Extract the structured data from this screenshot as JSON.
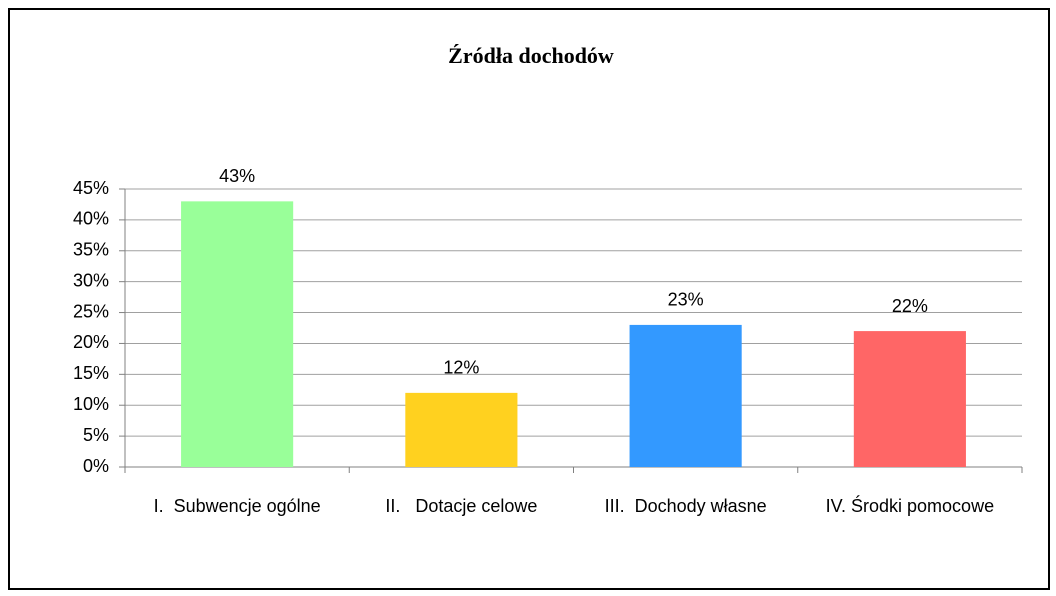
{
  "chart_data": {
    "type": "bar",
    "title": "Źródła dochodów",
    "categories": [
      "I.  Subwencje ogólne",
      "II.   Dotacje celowe",
      "III.  Dochody własne",
      "IV. Środki pomocowe"
    ],
    "values": [
      43,
      12,
      23,
      22
    ],
    "value_labels": [
      "43%",
      "12%",
      "23%",
      "22%"
    ],
    "colors": [
      "#99ff99",
      "#ffd11f",
      "#3399ff",
      "#ff6666"
    ],
    "ylim": [
      0,
      45
    ],
    "yticks": [
      {
        "value": 0,
        "label": "0%"
      },
      {
        "value": 5,
        "label": "5%"
      },
      {
        "value": 10,
        "label": "10%"
      },
      {
        "value": 15,
        "label": "15%"
      },
      {
        "value": 20,
        "label": "20%"
      },
      {
        "value": 25,
        "label": "25%"
      },
      {
        "value": 30,
        "label": "30%"
      },
      {
        "value": 35,
        "label": "35%"
      },
      {
        "value": 40,
        "label": "40%"
      },
      {
        "value": 45,
        "label": "45%"
      }
    ],
    "grid": true
  }
}
